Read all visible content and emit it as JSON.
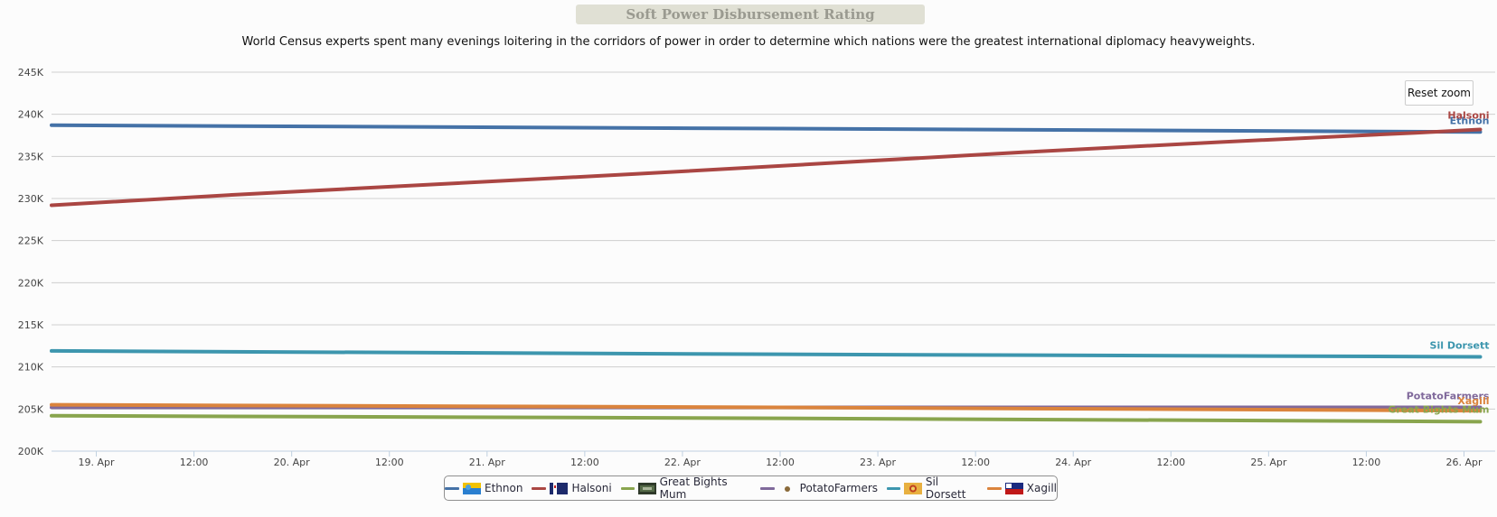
{
  "title": "Soft Power Disbursement Rating",
  "subtitle": "World Census experts spent many evenings loitering in the corridors of power in order to determine which nations were the greatest international diplomacy heavyweights.",
  "reset_zoom_label": "Reset zoom",
  "colors": {
    "grid": "#cfcfcf",
    "axis": "#c0d0e0",
    "tick_text": "#444444"
  },
  "chart_data": {
    "type": "line",
    "title": "Soft Power Disbursement Rating",
    "xlabel": "",
    "ylabel": "",
    "x_range": [
      "2016-04-18T18:30",
      "2016-04-26T02:30"
    ],
    "x_ticks": [
      "19. Apr",
      "12:00",
      "20. Apr",
      "12:00",
      "21. Apr",
      "12:00",
      "22. Apr",
      "12:00",
      "23. Apr",
      "12:00",
      "24. Apr",
      "12:00",
      "25. Apr",
      "12:00",
      "26. Apr"
    ],
    "ylim": [
      200000,
      245000
    ],
    "y_ticks": [
      "200K",
      "205K",
      "210K",
      "215K",
      "220K",
      "225K",
      "230K",
      "235K",
      "240K",
      "245K"
    ],
    "grid": true,
    "legend_position": "bottom-center",
    "series": [
      {
        "name": "Ethnon",
        "color": "#4572a7",
        "flag": "ethnon-flag-icon",
        "x": [
          "2016-04-18T18:30",
          "2016-04-22T12:00",
          "2016-04-26T02:00"
        ],
        "values": [
          238700,
          238300,
          237900
        ]
      },
      {
        "name": "Halsoni",
        "color": "#aa4643",
        "flag": "halsoni-flag-icon",
        "x": [
          "2016-04-18T18:30",
          "2016-04-19T18:00",
          "2016-04-20T18:00",
          "2016-04-21T18:00",
          "2016-04-22T18:00",
          "2016-04-23T18:00",
          "2016-04-24T18:00",
          "2016-04-25T18:00",
          "2016-04-26T02:00"
        ],
        "values": [
          229200,
          230500,
          231700,
          232900,
          234200,
          235500,
          236700,
          237800,
          238200
        ]
      },
      {
        "name": "Great Bights Mum",
        "color": "#89a54e",
        "flag": "great-bights-mum-flag-icon",
        "x": [
          "2016-04-18T18:30",
          "2016-04-22T12:00",
          "2016-04-26T02:00"
        ],
        "values": [
          204200,
          203900,
          203500
        ]
      },
      {
        "name": "PotatoFarmers",
        "color": "#80699b",
        "flag": "potatofarmers-flag-icon",
        "x": [
          "2016-04-18T18:30",
          "2016-04-22T12:00",
          "2016-04-26T02:00"
        ],
        "values": [
          205200,
          205200,
          205200
        ]
      },
      {
        "name": "Sil Dorsett",
        "color": "#3d96ae",
        "flag": "sil-dorsett-flag-icon",
        "x": [
          "2016-04-18T18:30",
          "2016-04-22T12:00",
          "2016-04-26T02:00"
        ],
        "values": [
          211900,
          211500,
          211200
        ]
      },
      {
        "name": "Xagill",
        "color": "#db843d",
        "flag": "xagill-flag-icon",
        "x": [
          "2016-04-18T18:30",
          "2016-04-22T12:00",
          "2016-04-26T02:00"
        ],
        "values": [
          205500,
          205200,
          204800
        ]
      }
    ]
  }
}
